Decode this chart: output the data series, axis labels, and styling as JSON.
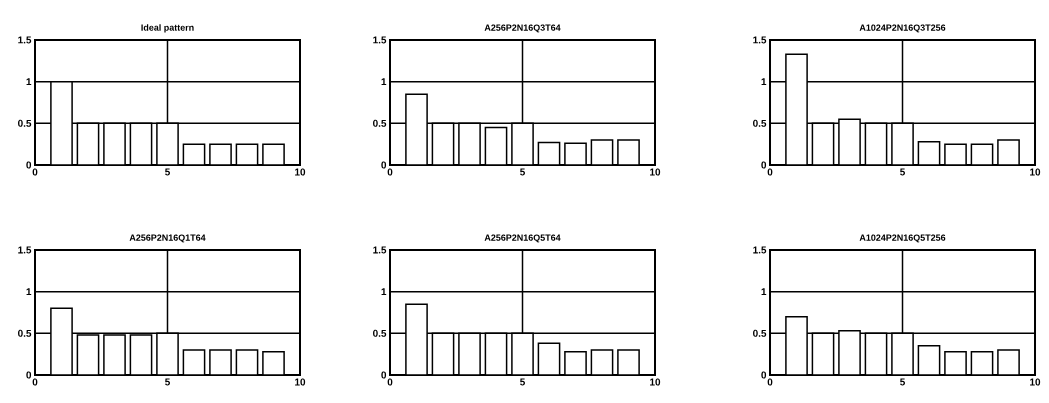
{
  "chart_data": [
    {
      "type": "bar",
      "title": "Ideal pattern",
      "x": [
        1,
        2,
        3,
        4,
        5,
        6,
        7,
        8,
        9
      ],
      "values": [
        1,
        0.5,
        0.5,
        0.5,
        0.5,
        0.25,
        0.25,
        0.25,
        0.25
      ],
      "color": "#ffffff",
      "xlim": [
        0,
        10
      ],
      "ylim": [
        0,
        1.5
      ],
      "xticks": [
        0,
        5,
        10
      ],
      "yticks": [
        0,
        0.5,
        1,
        1.5
      ],
      "grid": true
    },
    {
      "type": "bar",
      "title": "A256P2N16Q3T64",
      "x": [
        1,
        2,
        3,
        4,
        5,
        6,
        7,
        8,
        9
      ],
      "values": [
        0.85,
        0.5,
        0.5,
        0.45,
        0.5,
        0.27,
        0.26,
        0.3,
        0.3
      ],
      "color": "#ffffff",
      "xlim": [
        0,
        10
      ],
      "ylim": [
        0,
        1.5
      ],
      "xticks": [
        0,
        5,
        10
      ],
      "yticks": [
        0,
        0.5,
        1,
        1.5
      ],
      "grid": true
    },
    {
      "type": "bar",
      "title": "A1024P2N16Q3T256",
      "x": [
        1,
        2,
        3,
        4,
        5,
        6,
        7,
        8,
        9
      ],
      "values": [
        1.33,
        0.5,
        0.55,
        0.5,
        0.5,
        0.28,
        0.25,
        0.25,
        0.3
      ],
      "color": "#ffffff",
      "xlim": [
        0,
        10
      ],
      "ylim": [
        0,
        1.5
      ],
      "xticks": [
        0,
        5,
        10
      ],
      "yticks": [
        0,
        0.5,
        1,
        1.5
      ],
      "grid": true
    },
    {
      "type": "bar",
      "title": "A256P2N16Q1T64",
      "x": [
        1,
        2,
        3,
        4,
        5,
        6,
        7,
        8,
        9
      ],
      "values": [
        0.8,
        0.48,
        0.48,
        0.48,
        0.5,
        0.3,
        0.3,
        0.3,
        0.28
      ],
      "color": "#ffffff",
      "xlim": [
        0,
        10
      ],
      "ylim": [
        0,
        1.5
      ],
      "xticks": [
        0,
        5,
        10
      ],
      "yticks": [
        0,
        0.5,
        1,
        1.5
      ],
      "grid": true
    },
    {
      "type": "bar",
      "title": "A256P2N16Q5T64",
      "x": [
        1,
        2,
        3,
        4,
        5,
        6,
        7,
        8,
        9
      ],
      "values": [
        0.85,
        0.5,
        0.5,
        0.5,
        0.5,
        0.38,
        0.28,
        0.3,
        0.3
      ],
      "color": "#ffffff",
      "xlim": [
        0,
        10
      ],
      "ylim": [
        0,
        1.5
      ],
      "xticks": [
        0,
        5,
        10
      ],
      "yticks": [
        0,
        0.5,
        1,
        1.5
      ],
      "grid": true
    },
    {
      "type": "bar",
      "title": "A1024P2N16Q5T256",
      "x": [
        1,
        2,
        3,
        4,
        5,
        6,
        7,
        8,
        9
      ],
      "values": [
        0.7,
        0.5,
        0.53,
        0.5,
        0.5,
        0.35,
        0.28,
        0.28,
        0.3
      ],
      "color": "#ffffff",
      "xlim": [
        0,
        10
      ],
      "ylim": [
        0,
        1.5
      ],
      "xticks": [
        0,
        5,
        10
      ],
      "yticks": [
        0,
        0.5,
        1,
        1.5
      ],
      "grid": true
    }
  ]
}
